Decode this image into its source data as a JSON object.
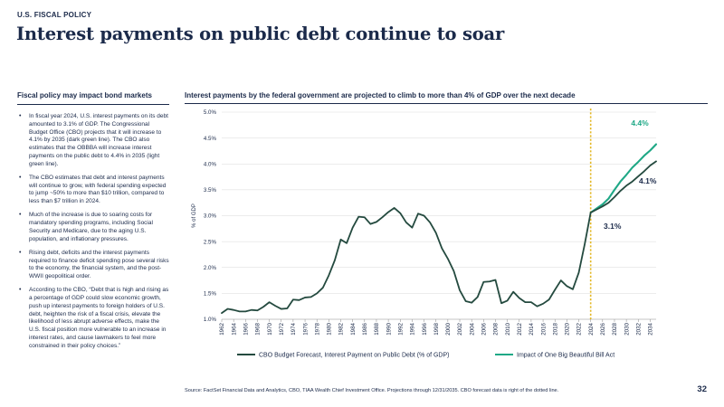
{
  "header": {
    "section_label": "U.S. FISCAL POLICY",
    "title": "Interest payments on public debt continue to soar"
  },
  "left": {
    "heading": "Fiscal policy may impact bond markets",
    "bullets": [
      "In fiscal year 2024, U.S. interest payments on its debt amounted to 3.1% of GDP. The Congressional Budget Office (CBO) projects that it will increase to 4.1% by 2035 (dark green line). The CBO also estimates that the OBBBA will increase interest payments on the public debt to 4.4% in 2035 (light green line).",
      "The CBO estimates that debt and interest payments will continue to grow, with federal spending expected to jump ~50% to more than $10 trillion, compared to less than $7 trillion in 2024.",
      "Much of the increase is due to soaring costs for mandatory spending programs, including Social Security and Medicare, due to the aging U.S. population, and inflationary pressures.",
      "Rising debt, deficits and the interest payments required to finance deficit spending pose several risks to the economy, the financial system, and the post-WWII geopolitical order.",
      "According to the CBO, “Debt that is high and rising as a percentage of GDP could slow economic growth, push up interest payments to foreign holders of U.S. debt, heighten the risk of a fiscal crisis, elevate the likelihood of less abrupt adverse effects, make the U.S. fiscal position more vulnerable to an increase in interest rates, and cause lawmakers to feel more constrained in their policy choices.”"
    ]
  },
  "chart_heading": "Interest payments by the federal government are projected to climb to more than 4% of GDP over the next decade",
  "footer": {
    "source": "Source: FactSet Financial Data and Analytics, CBO, TIAA Wealth Chief Investment Office. Projections through 12/31/2035. CBO forecast data is right of the dotted line.",
    "page_number": "32"
  },
  "colors": {
    "navy": "#1b2a4a",
    "dark_green": "#244a3f",
    "light_green": "#1fa886",
    "divider": "#e3b826",
    "grid": "#d9d9d9"
  },
  "chart_data": {
    "type": "line",
    "ylabel": "% of GDP",
    "ylim": [
      1.0,
      5.0
    ],
    "y_ticks": [
      "1.0%",
      "1.5%",
      "2.0%",
      "2.5%",
      "3.0%",
      "3.5%",
      "4.0%",
      "4.5%",
      "5.0%"
    ],
    "x_range": [
      1962,
      2035
    ],
    "x_ticks": [
      "1962",
      "1964",
      "1966",
      "1968",
      "1970",
      "1972",
      "1974",
      "1976",
      "1978",
      "1980",
      "1982",
      "1984",
      "1986",
      "1988",
      "1990",
      "1992",
      "1994",
      "1996",
      "1998",
      "2000",
      "2002",
      "2004",
      "2006",
      "2008",
      "2010",
      "2012",
      "2014",
      "2016",
      "2018",
      "2020",
      "2022",
      "2024",
      "2026",
      "2028",
      "2030",
      "2032",
      "2034"
    ],
    "forecast_start": 2024,
    "grid": "horizontal",
    "legend_position": "bottom",
    "series": [
      {
        "name": "CBO Budget Forecast, Interest Payment on Public Debt (% of GDP)",
        "color": "#244a3f",
        "x": [
          1962,
          1963,
          1964,
          1965,
          1966,
          1967,
          1968,
          1969,
          1970,
          1971,
          1972,
          1973,
          1974,
          1975,
          1976,
          1977,
          1978,
          1979,
          1980,
          1981,
          1982,
          1983,
          1984,
          1985,
          1986,
          1987,
          1988,
          1989,
          1990,
          1991,
          1992,
          1993,
          1994,
          1995,
          1996,
          1997,
          1998,
          1999,
          2000,
          2001,
          2002,
          2003,
          2004,
          2005,
          2006,
          2007,
          2008,
          2009,
          2010,
          2011,
          2012,
          2013,
          2014,
          2015,
          2016,
          2017,
          2018,
          2019,
          2020,
          2021,
          2022,
          2023,
          2024,
          2025,
          2026,
          2027,
          2028,
          2029,
          2030,
          2031,
          2032,
          2033,
          2034,
          2035
        ],
        "values": [
          1.12,
          1.2,
          1.18,
          1.15,
          1.15,
          1.18,
          1.17,
          1.24,
          1.33,
          1.26,
          1.2,
          1.21,
          1.38,
          1.37,
          1.42,
          1.43,
          1.5,
          1.61,
          1.85,
          2.14,
          2.54,
          2.47,
          2.77,
          2.98,
          2.97,
          2.84,
          2.88,
          2.97,
          3.07,
          3.15,
          3.05,
          2.87,
          2.77,
          3.04,
          3.0,
          2.87,
          2.67,
          2.37,
          2.17,
          1.93,
          1.56,
          1.35,
          1.32,
          1.43,
          1.72,
          1.73,
          1.76,
          1.31,
          1.36,
          1.53,
          1.41,
          1.33,
          1.33,
          1.25,
          1.3,
          1.38,
          1.57,
          1.75,
          1.64,
          1.58,
          1.9,
          2.45,
          3.06,
          3.12,
          3.18,
          3.25,
          3.36,
          3.48,
          3.58,
          3.66,
          3.76,
          3.86,
          3.97,
          4.05
        ]
      },
      {
        "name": "Impact of One Big Beautiful Bill Act",
        "color": "#1fa886",
        "x": [
          2024,
          2025,
          2026,
          2027,
          2028,
          2029,
          2030,
          2031,
          2032,
          2033,
          2034,
          2035
        ],
        "values": [
          3.06,
          3.14,
          3.22,
          3.33,
          3.5,
          3.66,
          3.79,
          3.93,
          4.04,
          4.16,
          4.26,
          4.38
        ]
      }
    ],
    "annotations": [
      {
        "text": "4.4%",
        "color": "#1fa886"
      },
      {
        "text": "4.1%",
        "color": "#1b2a4a"
      },
      {
        "text": "3.1%",
        "color": "#1b2a4a"
      }
    ]
  }
}
